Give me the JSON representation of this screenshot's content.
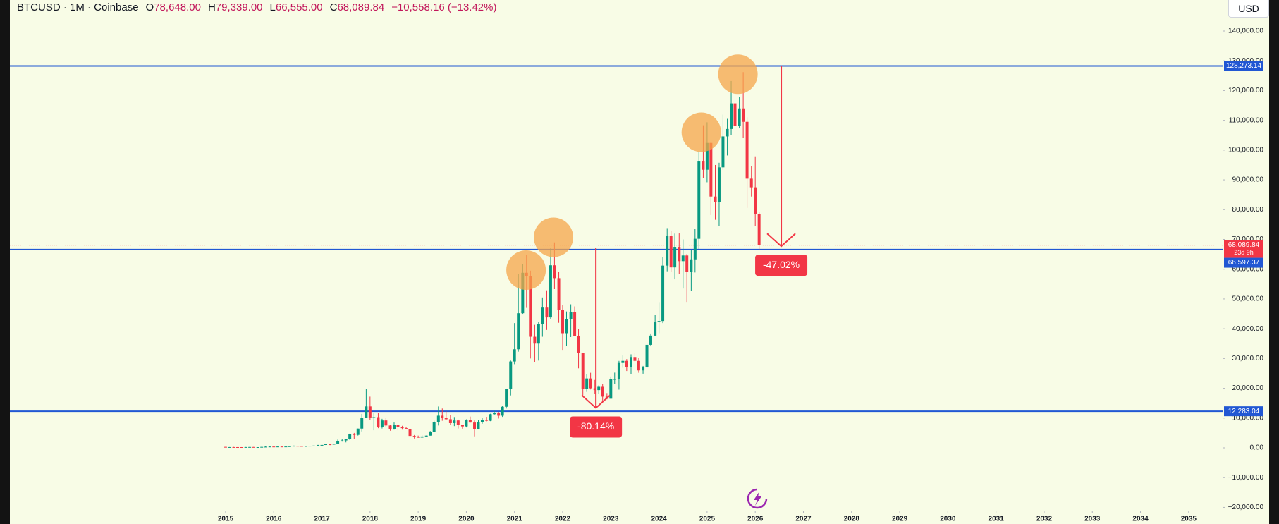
{
  "header": {
    "symbol": "BTCUSD · 1M · Coinbase",
    "ohlc": [
      {
        "key": "O",
        "value": "78,648.00"
      },
      {
        "key": "H",
        "value": "79,339.00"
      },
      {
        "key": "L",
        "value": "66,555.00"
      },
      {
        "key": "C",
        "value": "68,089.84"
      }
    ],
    "change": "−10,558.16 (−13.42%)",
    "currency": "USD"
  },
  "chart_data": {
    "type": "candlestick",
    "up_color": "#089981",
    "down_color": "#f23645",
    "grid": false,
    "xlim": [
      2010.52,
      2035.72
    ],
    "ylim": [
      -21080,
      150420
    ],
    "xticks": [
      2015,
      2016,
      2017,
      2018,
      2019,
      2020,
      2021,
      2022,
      2023,
      2024,
      2025,
      2026,
      2027,
      2028,
      2029,
      2030,
      2031,
      2032,
      2033,
      2034,
      2035
    ],
    "yticks": [
      {
        "value": -20000,
        "label": "−20,000.00"
      },
      {
        "value": -10000,
        "label": "−10,000.00"
      },
      {
        "value": 0,
        "label": "0.00"
      },
      {
        "value": 10000,
        "label": "10,000.00"
      },
      {
        "value": 20000,
        "label": "20,000.00"
      },
      {
        "value": 30000,
        "label": "30,000.00"
      },
      {
        "value": 40000,
        "label": "40,000.00"
      },
      {
        "value": 50000,
        "label": "50,000.00"
      },
      {
        "value": 60000,
        "label": "60,000.00"
      },
      {
        "value": 70000,
        "label": "70,000.00"
      },
      {
        "value": 80000,
        "label": "80,000.00"
      },
      {
        "value": 90000,
        "label": "90,000.00"
      },
      {
        "value": 100000,
        "label": "100,000.00"
      },
      {
        "value": 110000,
        "label": "110,000.00"
      },
      {
        "value": 120000,
        "label": "120,000.00"
      },
      {
        "value": 130000,
        "label": "130,000.00"
      },
      {
        "value": 140000,
        "label": "140,000.00"
      }
    ],
    "x": [
      2015.0,
      2015.08,
      2015.17,
      2015.25,
      2015.33,
      2015.42,
      2015.5,
      2015.58,
      2015.67,
      2015.75,
      2015.83,
      2015.92,
      2016.0,
      2016.08,
      2016.17,
      2016.25,
      2016.33,
      2016.42,
      2016.5,
      2016.58,
      2016.67,
      2016.75,
      2016.83,
      2016.92,
      2017.0,
      2017.08,
      2017.17,
      2017.25,
      2017.33,
      2017.42,
      2017.5,
      2017.58,
      2017.67,
      2017.75,
      2017.83,
      2017.92,
      2018.0,
      2018.08,
      2018.17,
      2018.25,
      2018.33,
      2018.42,
      2018.5,
      2018.58,
      2018.67,
      2018.75,
      2018.83,
      2018.92,
      2019.0,
      2019.08,
      2019.17,
      2019.25,
      2019.33,
      2019.42,
      2019.5,
      2019.58,
      2019.67,
      2019.75,
      2019.83,
      2019.92,
      2020.0,
      2020.08,
      2020.17,
      2020.25,
      2020.33,
      2020.42,
      2020.5,
      2020.58,
      2020.67,
      2020.75,
      2020.83,
      2020.92,
      2021.0,
      2021.08,
      2021.17,
      2021.25,
      2021.33,
      2021.42,
      2021.5,
      2021.58,
      2021.67,
      2021.75,
      2021.83,
      2021.92,
      2022.0,
      2022.08,
      2022.17,
      2022.25,
      2022.33,
      2022.42,
      2022.5,
      2022.58,
      2022.67,
      2022.75,
      2022.83,
      2022.92,
      2023.0,
      2023.08,
      2023.17,
      2023.25,
      2023.33,
      2023.42,
      2023.5,
      2023.58,
      2023.67,
      2023.75,
      2023.83,
      2023.92,
      2024.0,
      2024.08,
      2024.17,
      2024.25,
      2024.33,
      2024.42,
      2024.5,
      2024.58,
      2024.67,
      2024.75,
      2024.83,
      2024.92,
      2025.0,
      2025.08,
      2025.17,
      2025.25,
      2025.33,
      2025.42,
      2025.5,
      2025.58,
      2025.67,
      2025.75,
      2025.83,
      2025.92,
      2026.0,
      2026.08
    ],
    "ohlc": [
      [
        320,
        320,
        165,
        218
      ],
      [
        218,
        265,
        212,
        254
      ],
      [
        254,
        300,
        235,
        244
      ],
      [
        244,
        260,
        215,
        236
      ],
      [
        236,
        248,
        225,
        230
      ],
      [
        230,
        268,
        220,
        263
      ],
      [
        263,
        316,
        253,
        284
      ],
      [
        284,
        286,
        199,
        230
      ],
      [
        230,
        245,
        224,
        236
      ],
      [
        236,
        336,
        235,
        313
      ],
      [
        313,
        502,
        310,
        378
      ],
      [
        378,
        467,
        350,
        430
      ],
      [
        430,
        465,
        355,
        369
      ],
      [
        369,
        448,
        364,
        437
      ],
      [
        437,
        440,
        405,
        416
      ],
      [
        416,
        467,
        412,
        448
      ],
      [
        448,
        551,
        442,
        531
      ],
      [
        531,
        780,
        520,
        673
      ],
      [
        673,
        705,
        605,
        624
      ],
      [
        624,
        627,
        530,
        575
      ],
      [
        575,
        630,
        570,
        609
      ],
      [
        609,
        740,
        604,
        698
      ],
      [
        698,
        754,
        685,
        745
      ],
      [
        745,
        980,
        740,
        964
      ],
      [
        964,
        1160,
        760,
        970
      ],
      [
        970,
        1210,
        930,
        1190
      ],
      [
        1190,
        1350,
        890,
        1080
      ],
      [
        1080,
        1350,
        1070,
        1350
      ],
      [
        1350,
        2760,
        1350,
        2300
      ],
      [
        2300,
        3000,
        2080,
        2480
      ],
      [
        2480,
        2920,
        1830,
        2880
      ],
      [
        2880,
        4770,
        2650,
        4700
      ],
      [
        4700,
        5000,
        2950,
        4340
      ],
      [
        4340,
        6470,
        4110,
        6460
      ],
      [
        6460,
        11400,
        5500,
        10000
      ],
      [
        10000,
        19800,
        10000,
        13900
      ],
      [
        13900,
        17200,
        9400,
        10200
      ],
      [
        10200,
        11800,
        5900,
        10300
      ],
      [
        10300,
        11700,
        6600,
        6900
      ],
      [
        6900,
        9750,
        6500,
        9200
      ],
      [
        9200,
        10000,
        7000,
        7500
      ],
      [
        7500,
        7780,
        5750,
        6400
      ],
      [
        6400,
        8500,
        6100,
        7700
      ],
      [
        7700,
        7760,
        5880,
        7000
      ],
      [
        7000,
        7400,
        6100,
        6600
      ],
      [
        6600,
        7000,
        6200,
        6300
      ],
      [
        6300,
        6560,
        3500,
        4000
      ],
      [
        4000,
        4300,
        3130,
        3700
      ],
      [
        3700,
        4100,
        3350,
        3440
      ],
      [
        3440,
        4200,
        3380,
        3820
      ],
      [
        3820,
        4140,
        3730,
        4100
      ],
      [
        4100,
        5640,
        4080,
        5300
      ],
      [
        5300,
        9100,
        5300,
        8600
      ],
      [
        8600,
        13880,
        7500,
        10800
      ],
      [
        10800,
        13200,
        9100,
        10100
      ],
      [
        10100,
        12320,
        9360,
        9600
      ],
      [
        9600,
        10900,
        7700,
        8300
      ],
      [
        8300,
        10350,
        7300,
        9200
      ],
      [
        9200,
        9500,
        6500,
        7600
      ],
      [
        7600,
        7750,
        6430,
        7200
      ],
      [
        7200,
        9580,
        6850,
        9350
      ],
      [
        9350,
        10500,
        8450,
        8500
      ],
      [
        8500,
        9200,
        3850,
        6400
      ],
      [
        6400,
        9460,
        6150,
        8600
      ],
      [
        8600,
        10080,
        8100,
        9450
      ],
      [
        9450,
        10400,
        8900,
        9100
      ],
      [
        9100,
        11450,
        8960,
        11300
      ],
      [
        11300,
        12470,
        11100,
        11600
      ],
      [
        11600,
        12070,
        9850,
        10800
      ],
      [
        10800,
        14100,
        10400,
        13800
      ],
      [
        13800,
        19800,
        13200,
        19700
      ],
      [
        19700,
        29300,
        17600,
        29000
      ],
      [
        29000,
        41900,
        28100,
        33100
      ],
      [
        33100,
        58350,
        32300,
        45200
      ],
      [
        45200,
        61800,
        45000,
        58800
      ],
      [
        58800,
        64850,
        47000,
        57700
      ],
      [
        57700,
        59500,
        30000,
        37300
      ],
      [
        37300,
        41300,
        28800,
        35000
      ],
      [
        35000,
        42400,
        29300,
        41500
      ],
      [
        41500,
        50500,
        37300,
        47100
      ],
      [
        47100,
        52900,
        39600,
        43800
      ],
      [
        43800,
        67000,
        43300,
        61300
      ],
      [
        61300,
        69000,
        53300,
        57000
      ],
      [
        57000,
        59100,
        42000,
        46300
      ],
      [
        46300,
        48000,
        32900,
        38500
      ],
      [
        38500,
        45800,
        34300,
        43200
      ],
      [
        43200,
        48200,
        37200,
        45500
      ],
      [
        45500,
        47500,
        37600,
        37600
      ],
      [
        37600,
        40000,
        26700,
        31800
      ],
      [
        31800,
        31900,
        17600,
        19900
      ],
      [
        19900,
        24700,
        18800,
        23300
      ],
      [
        23300,
        25200,
        19600,
        20000
      ],
      [
        20000,
        22800,
        18150,
        19400
      ],
      [
        19400,
        21000,
        18200,
        20500
      ],
      [
        20500,
        21450,
        15500,
        17200
      ],
      [
        17200,
        18400,
        16300,
        16500
      ],
      [
        16500,
        23950,
        16500,
        23100
      ],
      [
        23100,
        25250,
        21400,
        23100
      ],
      [
        23100,
        29200,
        19550,
        28500
      ],
      [
        28500,
        31000,
        26900,
        29200
      ],
      [
        29200,
        29800,
        25800,
        27200
      ],
      [
        27200,
        31400,
        24800,
        30500
      ],
      [
        30500,
        31800,
        28900,
        29200
      ],
      [
        29200,
        30200,
        25200,
        26000
      ],
      [
        26000,
        27500,
        24900,
        27000
      ],
      [
        27000,
        35200,
        26600,
        34600
      ],
      [
        34600,
        38400,
        34100,
        37700
      ],
      [
        37700,
        44700,
        37600,
        42300
      ],
      [
        42300,
        48950,
        38500,
        42600
      ],
      [
        42600,
        64000,
        41900,
        61200
      ],
      [
        61200,
        73800,
        59300,
        71300
      ],
      [
        71300,
        72800,
        59200,
        60600
      ],
      [
        60600,
        71950,
        56600,
        67500
      ],
      [
        67500,
        72000,
        58500,
        62700
      ],
      [
        62700,
        70000,
        53500,
        64600
      ],
      [
        64600,
        65100,
        49000,
        59000
      ],
      [
        59000,
        66500,
        52600,
        63300
      ],
      [
        63300,
        73600,
        58900,
        70200
      ],
      [
        70200,
        99600,
        66800,
        96400
      ],
      [
        96400,
        108350,
        90500,
        93400
      ],
      [
        93400,
        109350,
        89200,
        102400
      ],
      [
        102400,
        102500,
        78200,
        84400
      ],
      [
        84400,
        95000,
        76600,
        82500
      ],
      [
        82500,
        95750,
        74500,
        94200
      ],
      [
        94200,
        111950,
        93400,
        104600
      ],
      [
        104600,
        110500,
        98200,
        107100
      ],
      [
        107100,
        123200,
        105100,
        115700
      ],
      [
        115700,
        124450,
        107300,
        108200
      ],
      [
        108200,
        117900,
        107300,
        114000
      ],
      [
        114000,
        126200,
        104000,
        109500
      ],
      [
        109500,
        111000,
        80600,
        90400
      ],
      [
        90400,
        94600,
        84400,
        87500
      ],
      [
        87500,
        97900,
        74500,
        78648
      ],
      [
        78648,
        79339,
        66555,
        68089.84
      ]
    ],
    "hline_color": "#2157d3",
    "hlines": [
      {
        "value": 128273.14,
        "label": "128,273.14"
      },
      {
        "value": 66597.37,
        "label": "66,597.37"
      },
      {
        "value": 12283.04,
        "label": "12,283.04"
      }
    ],
    "last_price": {
      "value": 68089.84,
      "label": "68,089.84",
      "countdown": "23d 9h",
      "color": "#f23645"
    },
    "highlight_color": "#f5a54a",
    "highlights": [
      {
        "x": 2021.24,
        "y": 59700
      },
      {
        "x": 2021.81,
        "y": 70700
      },
      {
        "x": 2024.88,
        "y": 106000
      },
      {
        "x": 2025.64,
        "y": 125500
      }
    ],
    "measure_color": "#f23645",
    "measures": [
      {
        "x": 2022.69,
        "from": 67100,
        "to": 13400,
        "label": "-80.14%"
      },
      {
        "x": 2026.54,
        "from": 128200,
        "to": 67700,
        "label": "-47.02%"
      }
    ]
  }
}
